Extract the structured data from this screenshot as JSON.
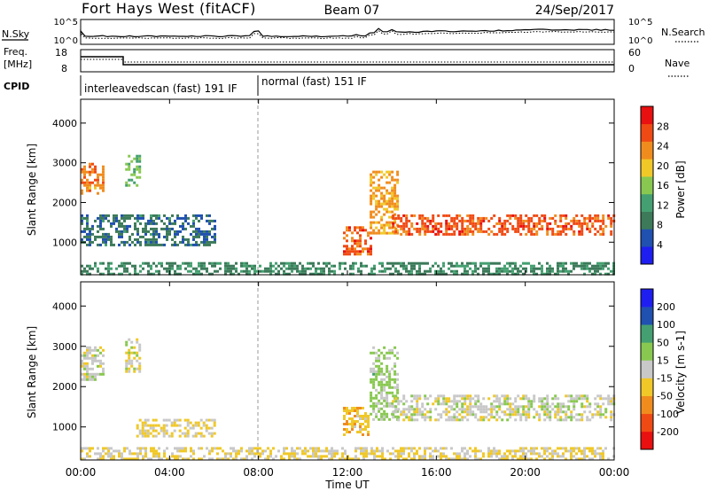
{
  "header": {
    "station": "Fort Hays West (fitACF)",
    "beam": "Beam 07",
    "date": "24/Sep/2017"
  },
  "strip": {
    "nsky_label": "N.Sky",
    "nsearch_label": "N.Search",
    "noise_ticks": [
      "10^5",
      "10^0"
    ],
    "freq_label_1": "Freq.",
    "freq_label_2": "[MHz]",
    "freq_ticks": [
      "18",
      "8"
    ],
    "nave_label": "Nave",
    "nave_ticks": [
      "60",
      "0"
    ],
    "cpid_label": "CPID",
    "cpid_segments": [
      {
        "label": "interleavedscan (fast) 191 IF",
        "start_hour": 0,
        "end_hour": 8
      },
      {
        "label": "normal (fast) 151 IF",
        "start_hour": 8,
        "end_hour": 24
      }
    ]
  },
  "power_panel": {
    "ylabel": "Slant Range [km]",
    "yticks": [
      "4000",
      "3000",
      "2000",
      "1000"
    ],
    "colorbar_label": "Power [dB]",
    "colorbar_ticks": [
      "28",
      "24",
      "20",
      "16",
      "12",
      "8",
      "4"
    ]
  },
  "velocity_panel": {
    "ylabel": "Slant Range [km]",
    "yticks": [
      "4000",
      "3000",
      "2000",
      "1000"
    ],
    "colorbar_label": "Velocity [m s-1]",
    "colorbar_ticks": [
      "200",
      "100",
      "50",
      "15",
      "-15",
      "-50",
      "-100",
      "-200"
    ]
  },
  "xaxis": {
    "label": "Time UT",
    "ticks": [
      "00:00",
      "04:00",
      "08:00",
      "12:00",
      "16:00",
      "20:00",
      "00:00"
    ]
  },
  "colors": {
    "power_scale": [
      "#1e1ef0",
      "#2050b0",
      "#3c7a5a",
      "#44a070",
      "#88c850",
      "#f0c828",
      "#f08c1e",
      "#f04a14",
      "#e81010"
    ],
    "velocity_scale": [
      "#e81010",
      "#f04a14",
      "#f08c1e",
      "#f0c828",
      "#c8c8c8",
      "#88c850",
      "#44a070",
      "#2050b0",
      "#1e1ef0"
    ]
  },
  "chart_data": [
    {
      "type": "heatmap",
      "title": "Power",
      "xlabel": "Time UT",
      "ylabel": "Slant Range [km]",
      "xlim": [
        0,
        24
      ],
      "ylim": [
        180,
        4600
      ],
      "colorbar": {
        "label": "Power [dB]",
        "range": [
          0,
          32
        ]
      },
      "features": [
        {
          "t0": 0.0,
          "t1": 1.0,
          "r0": 2200,
          "r1": 3000,
          "value": 24
        },
        {
          "t0": 2.0,
          "t1": 2.6,
          "r0": 2400,
          "r1": 3200,
          "value": 14
        },
        {
          "t0": 0.0,
          "t1": 6.0,
          "r0": 900,
          "r1": 1700,
          "value": 8
        },
        {
          "t0": 0.0,
          "t1": 24.0,
          "r0": 180,
          "r1": 500,
          "value": 10
        },
        {
          "t0": 11.8,
          "t1": 13.0,
          "r0": 700,
          "r1": 1400,
          "value": 26
        },
        {
          "t0": 13.0,
          "t1": 14.2,
          "r0": 1200,
          "r1": 2800,
          "value": 22
        },
        {
          "t0": 14.0,
          "t1": 24.0,
          "r0": 1200,
          "r1": 1700,
          "value": 26
        }
      ]
    },
    {
      "type": "heatmap",
      "title": "Velocity",
      "xlabel": "Time UT",
      "ylabel": "Slant Range [km]",
      "xlim": [
        0,
        24
      ],
      "ylim": [
        180,
        4600
      ],
      "colorbar": {
        "label": "Velocity [m s-1]",
        "range": [
          -250,
          250
        ]
      },
      "features": [
        {
          "t0": 0.0,
          "t1": 1.0,
          "r0": 2200,
          "r1": 3000,
          "value": 0
        },
        {
          "t0": 2.0,
          "t1": 2.6,
          "r0": 2400,
          "r1": 3200,
          "value": 0
        },
        {
          "t0": 2.5,
          "t1": 6.0,
          "r0": 800,
          "r1": 1200,
          "value": -40
        },
        {
          "t0": 0.0,
          "t1": 24.0,
          "r0": 180,
          "r1": 500,
          "value": -30
        },
        {
          "t0": 11.8,
          "t1": 12.9,
          "r0": 800,
          "r1": 1500,
          "value": -60
        },
        {
          "t0": 13.0,
          "t1": 14.2,
          "r0": 1200,
          "r1": 3000,
          "value": 40
        },
        {
          "t0": 14.0,
          "t1": 24.0,
          "r0": 1200,
          "r1": 1800,
          "value": 0
        }
      ]
    }
  ]
}
